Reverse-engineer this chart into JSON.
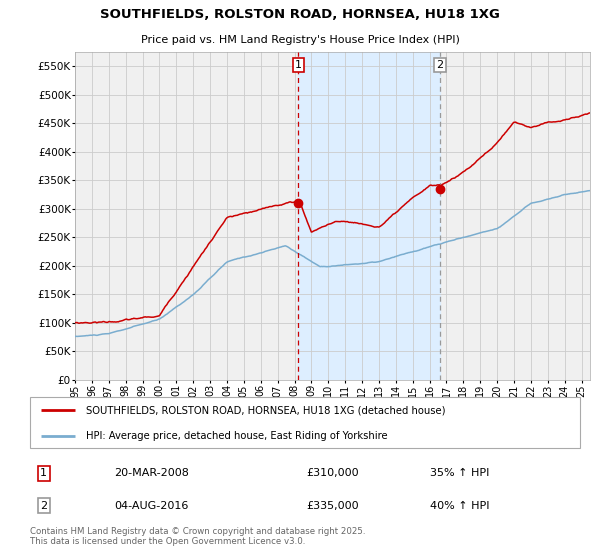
{
  "title_line1": "SOUTHFIELDS, ROLSTON ROAD, HORNSEA, HU18 1XG",
  "title_line2": "Price paid vs. HM Land Registry's House Price Index (HPI)",
  "legend_line1": "SOUTHFIELDS, ROLSTON ROAD, HORNSEA, HU18 1XG (detached house)",
  "legend_line2": "HPI: Average price, detached house, East Riding of Yorkshire",
  "sale1_label": "1",
  "sale1_date": "20-MAR-2008",
  "sale1_price": "£310,000",
  "sale1_hpi": "35% ↑ HPI",
  "sale2_label": "2",
  "sale2_date": "04-AUG-2016",
  "sale2_price": "£335,000",
  "sale2_hpi": "40% ↑ HPI",
  "footnote": "Contains HM Land Registry data © Crown copyright and database right 2025.\nThis data is licensed under the Open Government Licence v3.0.",
  "red_color": "#cc0000",
  "blue_color": "#7aadcf",
  "shade_color": "#ddeeff",
  "vline1_color": "#cc0000",
  "vline2_color": "#999999",
  "grid_color": "#cccccc",
  "bg_color": "#ffffff",
  "plot_bg_color": "#f0f0f0",
  "ylim": [
    0,
    575000
  ],
  "yticks": [
    0,
    50000,
    100000,
    150000,
    200000,
    250000,
    300000,
    350000,
    400000,
    450000,
    500000,
    550000
  ],
  "sale1_x": 2008.22,
  "sale1_y": 310000,
  "sale2_x": 2016.6,
  "sale2_y": 335000,
  "xmin": 1995,
  "xmax": 2025.5
}
